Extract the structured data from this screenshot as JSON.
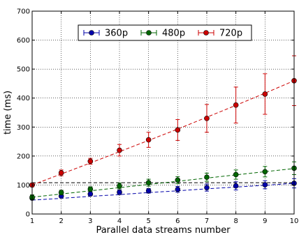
{
  "chart_data": {
    "type": "line",
    "title": "",
    "xlabel": "Parallel data streams number",
    "ylabel": "time (ms)",
    "xlim": [
      1,
      10
    ],
    "ylim": [
      0,
      700
    ],
    "x_ticks": [
      1,
      2,
      3,
      4,
      5,
      6,
      7,
      8,
      9,
      10
    ],
    "y_ticks": [
      0,
      100,
      200,
      300,
      400,
      500,
      600,
      700
    ],
    "grid": true,
    "legend_position": "top-center",
    "reference_line": {
      "y": 108,
      "style": "dashed",
      "color": "#000000"
    },
    "x": [
      1,
      2,
      3,
      4,
      5,
      6,
      7,
      8,
      9,
      10
    ],
    "series": [
      {
        "name": "360p",
        "color": "#0000aa",
        "values": [
          55,
          62,
          69,
          75,
          80,
          85,
          91,
          97,
          101,
          106
        ],
        "errors": [
          6,
          6,
          6,
          8,
          8,
          10,
          12,
          14,
          14,
          16
        ],
        "fit": [
          48,
          54,
          61,
          67,
          74,
          80,
          87,
          93,
          99,
          106
        ]
      },
      {
        "name": "480p",
        "color": "#006600",
        "values": [
          58,
          74,
          86,
          97,
          108,
          117,
          127,
          136,
          146,
          158
        ],
        "errors": [
          8,
          8,
          8,
          10,
          12,
          12,
          14,
          16,
          18,
          22
        ],
        "fit": [
          58,
          69,
          80,
          91,
          102,
          113,
          124,
          135,
          146,
          157
        ]
      },
      {
        "name": "720p",
        "color": "#cc0000",
        "values": [
          100,
          142,
          182,
          220,
          256,
          290,
          330,
          376,
          414,
          460
        ],
        "errors": [
          6,
          10,
          10,
          20,
          26,
          36,
          48,
          62,
          70,
          86
        ],
        "fit": [
          100,
          138,
          176,
          215,
          254,
          293,
          334,
          375,
          417,
          460
        ]
      }
    ]
  }
}
